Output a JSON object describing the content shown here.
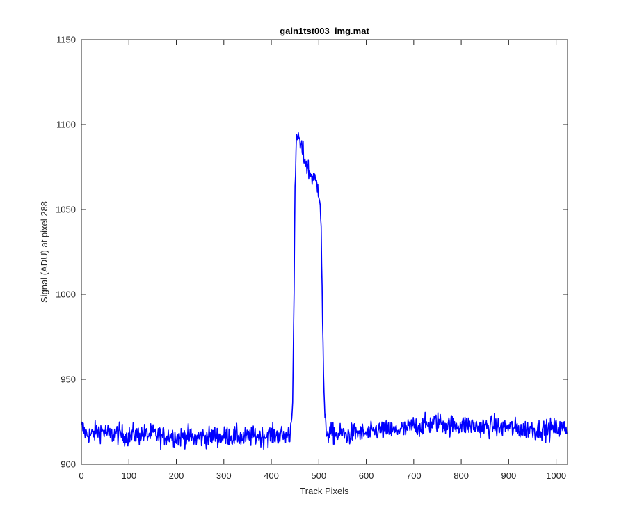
{
  "chart_data": {
    "type": "line",
    "title": "gain1tst003_img.mat",
    "xlabel": "Track Pixels",
    "ylabel": "Signal (ADU) at pixel 288",
    "xlim": [
      0,
      1024
    ],
    "ylim": [
      900,
      1150
    ],
    "xticks": [
      0,
      100,
      200,
      300,
      400,
      500,
      600,
      700,
      800,
      900,
      1000
    ],
    "yticks": [
      900,
      950,
      1000,
      1050,
      1100,
      1150
    ],
    "grid": false,
    "legend": "none",
    "colors": {
      "line": "#0000ff",
      "axes": "#262626",
      "background": "#ffffff"
    },
    "series": [
      {
        "samples": 1024,
        "x": [
          0,
          10,
          20,
          30,
          40,
          50,
          60,
          70,
          80,
          90,
          100,
          110,
          120,
          130,
          140,
          150,
          160,
          170,
          180,
          190,
          200,
          210,
          220,
          230,
          240,
          250,
          260,
          270,
          280,
          290,
          300,
          310,
          320,
          330,
          340,
          350,
          360,
          370,
          380,
          390,
          400,
          410,
          420,
          430,
          440,
          445,
          448,
          450,
          452,
          455,
          458,
          460,
          465,
          470,
          475,
          480,
          485,
          490,
          495,
          500,
          503,
          505,
          507,
          509,
          511,
          513,
          516,
          520,
          530,
          540,
          550,
          560,
          570,
          580,
          590,
          600,
          610,
          620,
          630,
          640,
          650,
          660,
          670,
          680,
          690,
          700,
          710,
          720,
          730,
          740,
          750,
          760,
          770,
          780,
          790,
          800,
          810,
          820,
          830,
          840,
          850,
          860,
          870,
          880,
          890,
          900,
          910,
          920,
          930,
          940,
          950,
          960,
          970,
          980,
          990,
          1000,
          1010,
          1020,
          1024
        ],
        "y": [
          922,
          918,
          917,
          919,
          920,
          919,
          917,
          918,
          918,
          917,
          916,
          918,
          917,
          918,
          917,
          918,
          917,
          916,
          917,
          917,
          916,
          916,
          917,
          916,
          915,
          916,
          916,
          916,
          917,
          916,
          916,
          917,
          916,
          917,
          915,
          916,
          916,
          917,
          916,
          917,
          917,
          917,
          917,
          917,
          918,
          940,
          1000,
          1060,
          1085,
          1092,
          1095,
          1088,
          1085,
          1080,
          1076,
          1072,
          1070,
          1068,
          1065,
          1062,
          1055,
          1040,
          1000,
          970,
          940,
          925,
          920,
          918,
          918,
          917,
          918,
          917,
          918,
          919,
          918,
          918,
          918,
          920,
          920,
          920,
          920,
          919,
          921,
          920,
          921,
          923,
          922,
          923,
          923,
          924,
          925,
          924,
          923,
          923,
          923,
          923,
          923,
          923,
          922,
          922,
          922,
          922,
          923,
          921,
          922,
          922,
          921,
          921,
          920,
          921,
          921,
          920,
          921,
          920,
          921,
          921,
          921,
          921,
          921
        ]
      }
    ]
  }
}
